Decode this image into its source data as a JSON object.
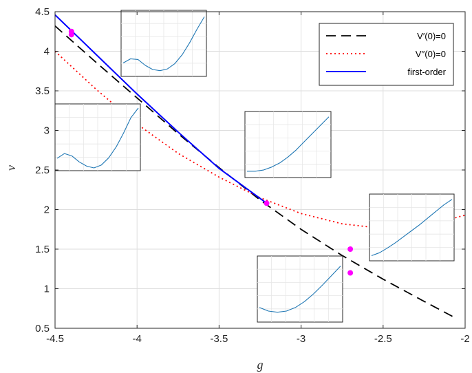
{
  "chart_data": {
    "type": "line",
    "xlabel": "g",
    "ylabel": "ν",
    "xlim": [
      -4.5,
      -2
    ],
    "ylim": [
      0.5,
      4.5
    ],
    "xticks": [
      -4.5,
      -4,
      -3.5,
      -3,
      -2.5,
      -2
    ],
    "xtick_labels": [
      "-4.5",
      "-4",
      "-3.5",
      "-3",
      "-2.5",
      "-2"
    ],
    "yticks": [
      0.5,
      1,
      1.5,
      2,
      2.5,
      3,
      3.5,
      4,
      4.5
    ],
    "ytick_labels": [
      "0.5",
      "1",
      "1.5",
      "2",
      "2.5",
      "3",
      "3.5",
      "4",
      "4.5"
    ],
    "grid": true,
    "legend_position": "top-right",
    "series": [
      {
        "name": "V′(0)=0",
        "color": "#000000",
        "style": "dashed",
        "x": [
          -4.5,
          -4.25,
          -4.0,
          -3.75,
          -3.5,
          -3.25,
          -3.0,
          -2.75,
          -2.5,
          -2.25,
          -2.05
        ],
        "y": [
          4.32,
          3.86,
          3.41,
          2.96,
          2.53,
          2.12,
          1.75,
          1.42,
          1.12,
          0.84,
          0.62
        ]
      },
      {
        "name": "V′′(0)=0",
        "color": "#ff0000",
        "style": "dotted",
        "x": [
          -4.5,
          -4.25,
          -4.0,
          -3.75,
          -3.5,
          -3.25,
          -3.0,
          -2.75,
          -2.5,
          -2.25,
          -2.0
        ],
        "y": [
          4.0,
          3.52,
          3.08,
          2.71,
          2.41,
          2.15,
          1.95,
          1.82,
          1.76,
          1.79,
          1.93
        ]
      },
      {
        "name": "first-order",
        "color": "#0000ff",
        "style": "solid",
        "x": [
          -4.5,
          -4.25,
          -4.0,
          -3.75,
          -3.5,
          -3.21
        ],
        "y": [
          4.46,
          3.96,
          3.46,
          2.98,
          2.52,
          2.08
        ]
      }
    ],
    "markers": {
      "color": "#ff00ff",
      "points": [
        {
          "x": -4.4,
          "y": 4.25
        },
        {
          "x": -4.4,
          "y": 4.21
        },
        {
          "x": -3.21,
          "y": 2.08
        },
        {
          "x": -2.7,
          "y": 1.5
        },
        {
          "x": -2.7,
          "y": 1.2
        }
      ]
    },
    "insets": [
      {
        "curve": [
          0.18,
          0.25,
          0.24,
          0.14,
          0.07,
          0.05,
          0.08,
          0.17,
          0.32,
          0.52,
          0.75,
          0.96
        ]
      },
      {
        "curve": [
          0.16,
          0.24,
          0.2,
          0.1,
          0.03,
          0.0,
          0.05,
          0.17,
          0.35,
          0.58,
          0.84,
          1.0
        ]
      },
      {
        "curve": [
          0.06,
          0.06,
          0.08,
          0.13,
          0.2,
          0.3,
          0.42,
          0.56,
          0.7,
          0.84,
          0.98
        ]
      },
      {
        "curve": [
          0.04,
          0.09,
          0.17,
          0.26,
          0.36,
          0.46,
          0.56,
          0.67,
          0.78,
          0.89,
          0.98
        ]
      },
      {
        "curve": [
          0.2,
          0.14,
          0.12,
          0.14,
          0.2,
          0.3,
          0.43,
          0.58,
          0.74,
          0.9
        ]
      }
    ]
  }
}
